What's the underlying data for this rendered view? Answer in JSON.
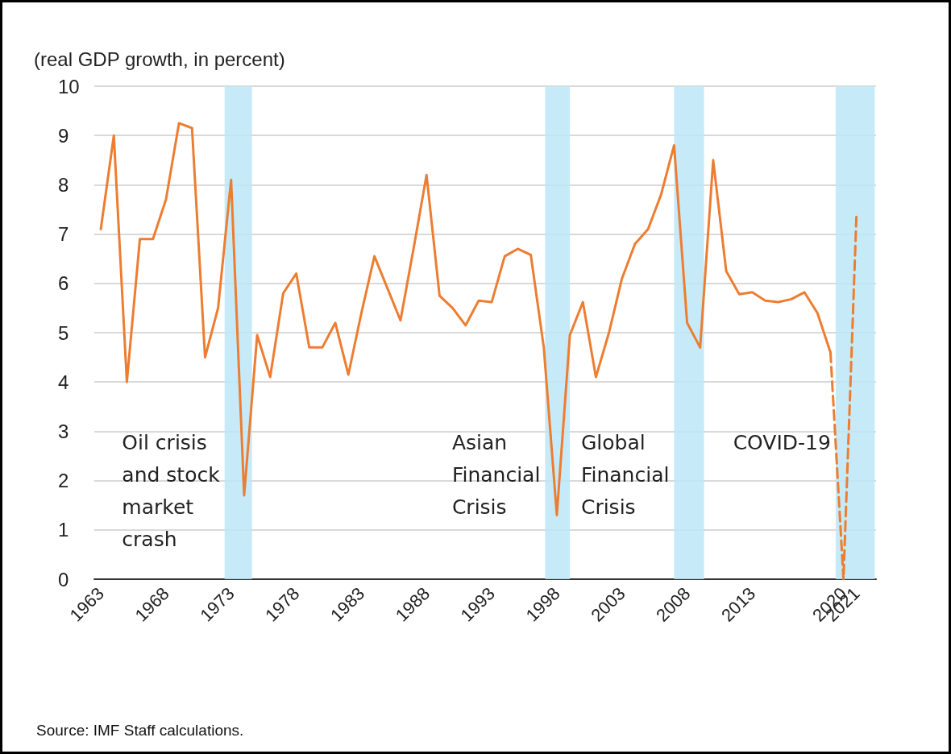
{
  "chart_data": {
    "type": "line",
    "ylabel": "(real GDP growth, in percent)",
    "x": [
      1963,
      1964,
      1965,
      1966,
      1967,
      1968,
      1969,
      1970,
      1971,
      1972,
      1973,
      1974,
      1975,
      1976,
      1977,
      1978,
      1979,
      1980,
      1981,
      1982,
      1983,
      1984,
      1985,
      1986,
      1987,
      1988,
      1989,
      1990,
      1991,
      1992,
      1993,
      1994,
      1995,
      1996,
      1997,
      1998,
      1999,
      2000,
      2001,
      2002,
      2003,
      2004,
      2005,
      2006,
      2007,
      2008,
      2009,
      2010,
      2011,
      2012,
      2013,
      2014,
      2015,
      2016,
      2017,
      2018,
      2019
    ],
    "series": [
      {
        "color": "#ed7d31",
        "line_style": "solid",
        "values": [
          7.1,
          9.0,
          4.0,
          6.9,
          6.9,
          7.7,
          9.25,
          9.15,
          4.5,
          5.5,
          8.1,
          1.7,
          4.95,
          4.1,
          5.8,
          6.2,
          4.7,
          4.7,
          5.2,
          4.15,
          5.4,
          6.55,
          5.9,
          5.25,
          6.7,
          8.2,
          5.75,
          5.5,
          5.15,
          5.65,
          5.62,
          6.55,
          6.7,
          6.58,
          4.7,
          1.3,
          4.95,
          5.62,
          4.1,
          5.0,
          6.1,
          6.8,
          7.1,
          7.8,
          8.8,
          5.2,
          4.7,
          8.5,
          6.25,
          5.78,
          5.82,
          5.65,
          5.62,
          5.68,
          5.82,
          5.4,
          4.6
        ]
      },
      {
        "color": "#ed7d31",
        "line_style": "dashed",
        "x": [
          2019,
          2020,
          2021
        ],
        "values": [
          4.6,
          0,
          7.4
        ]
      }
    ],
    "xlim": [
      1962.5,
      2022.5
    ],
    "xticks": [
      1963,
      1968,
      1973,
      1978,
      1983,
      1988,
      1993,
      1998,
      2003,
      2008,
      2013,
      2020,
      2021
    ],
    "ylim": [
      0,
      10
    ],
    "yticks": [
      0,
      1,
      2,
      3,
      4,
      5,
      6,
      7,
      8,
      9,
      10
    ],
    "grid": "y",
    "bands": [
      {
        "axis": "x",
        "from": 1972.5,
        "to": 1974.6,
        "label": "Oil crisis and stock market crash",
        "color": "#bde6f7"
      },
      {
        "axis": "x",
        "from": 1997.1,
        "to": 1999.0,
        "label": "Asian Financial Crisis",
        "color": "#bde6f7"
      },
      {
        "axis": "x",
        "from": 2007.0,
        "to": 2009.3,
        "label": "Global Financial Crisis",
        "color": "#bde6f7"
      },
      {
        "axis": "x",
        "from": 2019.4,
        "to": 2022.4,
        "label": "COVID-19",
        "color": "#bde6f7"
      }
    ],
    "annotations": [
      "Source: IMF Staff calculations."
    ]
  }
}
